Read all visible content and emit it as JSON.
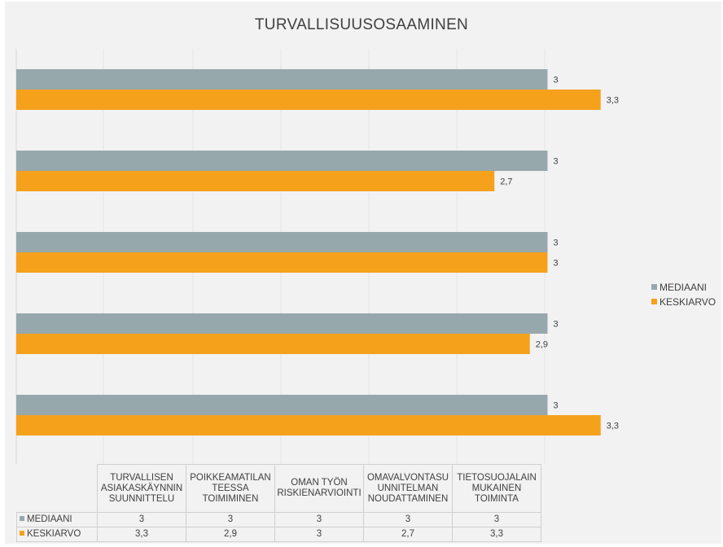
{
  "chart_data": {
    "type": "bar",
    "orientation": "horizontal",
    "title": "TURVALLISUUSOSAAMINEN",
    "categories": [
      "TURVALLISEN ASIAKASKÄYNNIN SUUNNITTELU",
      "POIKKEAMATILANTEESSA TOIMIMINEN",
      "OMAN TYÖN RISKIENARVIOINTI",
      "OMAVALVONTASUUNNITELMAN NOUDATTAMINEN",
      "TIETOSUOJALAIN MUKAINEN TOIMINTA"
    ],
    "category_lines": [
      [
        "TURVALLISEN",
        "ASIAKASKÄYNNIN",
        "SUUNNITTELU"
      ],
      [
        "POIKKEAMATILAN",
        "TEESSA",
        "TOIMIMINEN"
      ],
      [
        "OMAN TYÖN",
        "RISKIENARVIOINTI"
      ],
      [
        "OMAVALVONTASU",
        "UNNITELMAN",
        "NOUDATTAMINEN"
      ],
      [
        "TIETOSUOJALAIN",
        "MUKAINEN",
        "TOIMINTA"
      ]
    ],
    "series": [
      {
        "name": "MEDIAANI",
        "values": [
          3,
          3,
          3,
          3,
          3
        ],
        "labels": [
          "3",
          "3",
          "3",
          "3",
          "3"
        ],
        "color": "#97a8ad"
      },
      {
        "name": "KESKIARVO",
        "values": [
          3.3,
          2.9,
          3,
          2.7,
          3.3
        ],
        "labels": [
          "3,3",
          "2,9",
          "3",
          "2,7",
          "3,3"
        ],
        "color": "#f5a11c"
      }
    ],
    "xlim": [
      0,
      4
    ],
    "grid": true,
    "legend_position": "right",
    "data_table": true
  }
}
